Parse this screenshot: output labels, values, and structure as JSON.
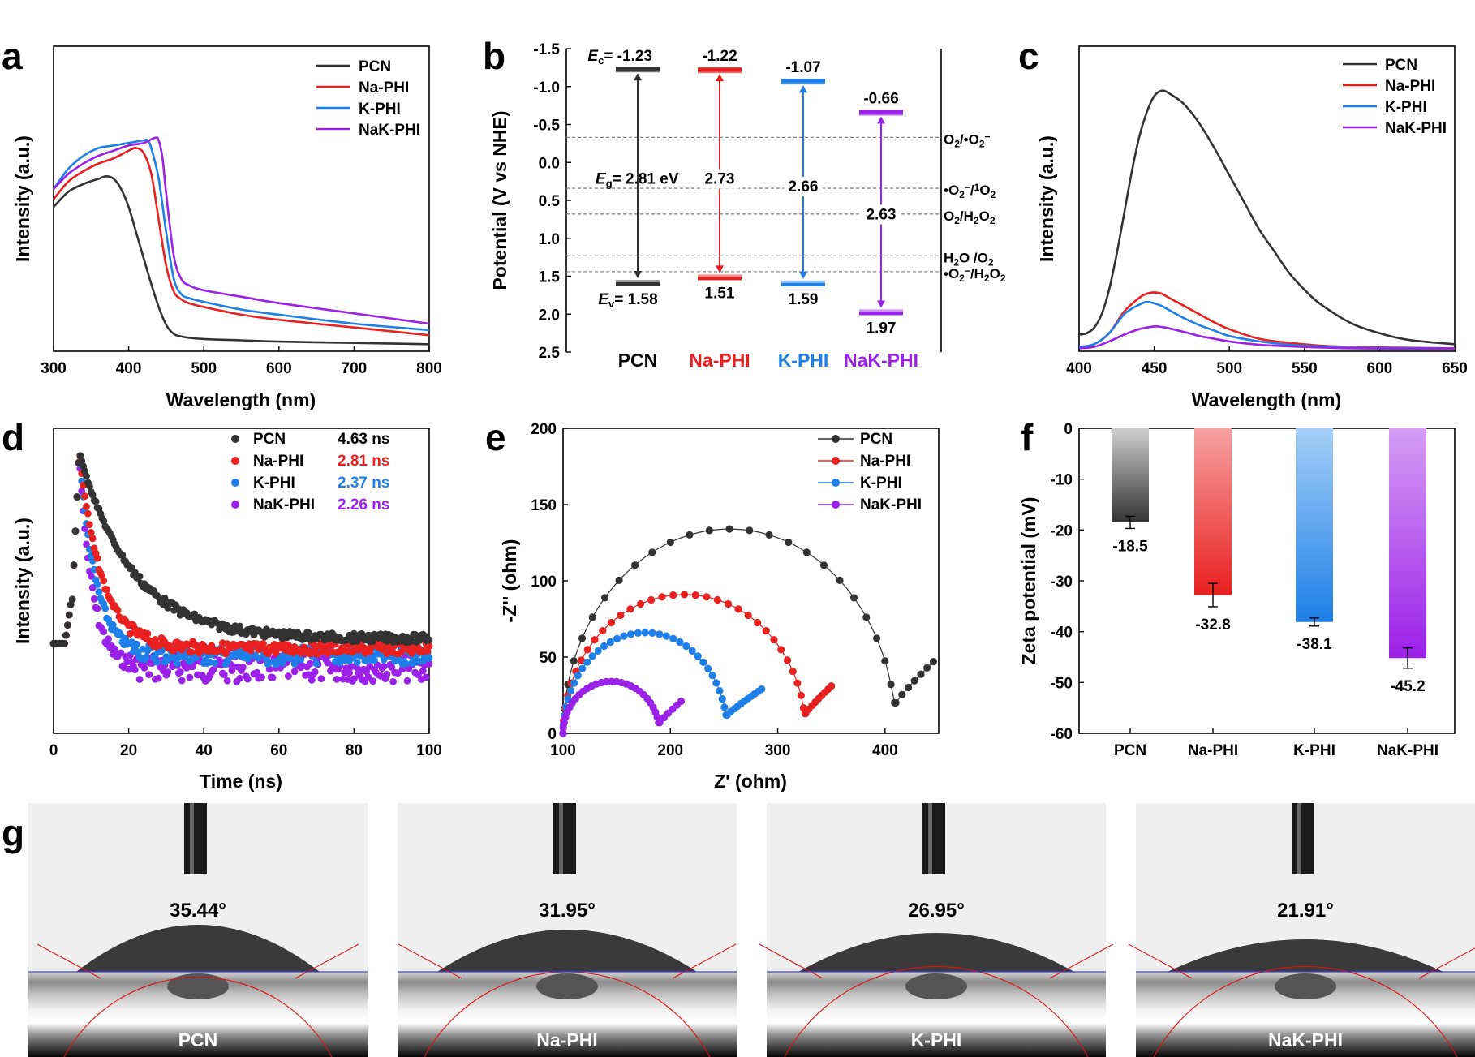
{
  "panel_labels": [
    "a",
    "b",
    "c",
    "d",
    "e",
    "f",
    "g"
  ],
  "colors": {
    "PCN": "#333333",
    "Na-PHI": "#e8201f",
    "K-PHI": "#1e7fe8",
    "NaK-PHI": "#9b20e8",
    "line": "#000000",
    "dashed": "#888888"
  },
  "chart_data": [
    {
      "panel": "a",
      "type": "line",
      "xlabel": "Wavelength (nm)",
      "ylabel": "Intensity (a.u.)",
      "xlim": [
        300,
        800
      ],
      "ylim": [
        0,
        1.0
      ],
      "xticks": [
        300,
        400,
        500,
        600,
        700,
        800
      ],
      "legend": "top-right",
      "series": [
        {
          "name": "PCN",
          "color": "#333333",
          "x": [
            300,
            320,
            340,
            360,
            370,
            380,
            390,
            400,
            410,
            420,
            430,
            440,
            450,
            460,
            470,
            480,
            500,
            550,
            600,
            700,
            800
          ],
          "y": [
            0.55,
            0.61,
            0.64,
            0.66,
            0.67,
            0.66,
            0.62,
            0.55,
            0.45,
            0.35,
            0.25,
            0.16,
            0.09,
            0.055,
            0.045,
            0.04,
            0.035,
            0.03,
            0.025,
            0.02,
            0.015
          ]
        },
        {
          "name": "Na-PHI",
          "color": "#e8201f",
          "x": [
            300,
            320,
            340,
            360,
            380,
            400,
            410,
            420,
            430,
            440,
            450,
            460,
            470,
            480,
            500,
            550,
            600,
            700,
            800
          ],
          "y": [
            0.58,
            0.65,
            0.69,
            0.72,
            0.74,
            0.77,
            0.78,
            0.76,
            0.68,
            0.5,
            0.32,
            0.22,
            0.19,
            0.175,
            0.16,
            0.13,
            0.11,
            0.08,
            0.05
          ]
        },
        {
          "name": "K-PHI",
          "color": "#1e7fe8",
          "x": [
            300,
            320,
            340,
            360,
            380,
            400,
            420,
            425,
            430,
            440,
            450,
            460,
            470,
            480,
            500,
            550,
            600,
            700,
            800
          ],
          "y": [
            0.62,
            0.7,
            0.75,
            0.78,
            0.79,
            0.8,
            0.81,
            0.81,
            0.78,
            0.66,
            0.45,
            0.27,
            0.21,
            0.195,
            0.18,
            0.15,
            0.13,
            0.095,
            0.07
          ]
        },
        {
          "name": "NaK-PHI",
          "color": "#9b20e8",
          "x": [
            300,
            320,
            340,
            360,
            380,
            400,
            420,
            435,
            440,
            445,
            450,
            460,
            470,
            480,
            500,
            550,
            600,
            700,
            800
          ],
          "y": [
            0.62,
            0.68,
            0.72,
            0.75,
            0.77,
            0.79,
            0.8,
            0.82,
            0.81,
            0.74,
            0.6,
            0.36,
            0.27,
            0.245,
            0.225,
            0.2,
            0.175,
            0.135,
            0.095
          ]
        }
      ]
    },
    {
      "panel": "b",
      "type": "band_diagram",
      "ylabel": "Potential (V vs NHE)",
      "ylim": [
        -1.5,
        2.5
      ],
      "yticks": [
        "-1.5",
        "-1.0",
        "-0.5",
        "0.0",
        "0.5",
        "1.0",
        "1.5",
        "2.0",
        "2.5"
      ],
      "samples": [
        {
          "name": "PCN",
          "color": "#333333",
          "ec": -1.23,
          "ev": 1.58,
          "ec_label": "-1.23",
          "ev_label": "1.58",
          "eg_label": "2.81 eV",
          "ec_prefix": "E",
          "ec_sub": "c",
          "ev_prefix": "E",
          "ev_sub": "v",
          "eg_prefix": "E",
          "eg_sub": "g",
          "eq": "= ",
          "label_color": "#000000"
        },
        {
          "name": "Na-PHI",
          "color": "#e8201f",
          "ec": -1.22,
          "ev": 1.51,
          "ec_label": "-1.22",
          "ev_label": "1.51",
          "eg_label": "2.73",
          "label_color": "#e8201f"
        },
        {
          "name": "K-PHI",
          "color": "#1e7fe8",
          "ec": -1.07,
          "ev": 1.59,
          "ec_label": "-1.07",
          "ev_label": "1.59",
          "eg_label": "2.66",
          "label_color": "#1e7fe8"
        },
        {
          "name": "NaK-PHI",
          "color": "#9b20e8",
          "ec": -0.66,
          "ev": 1.97,
          "ec_label": "-0.66",
          "ev_label": "1.97",
          "eg_label": "2.63",
          "label_color": "#9b20e8"
        }
      ],
      "redox": [
        {
          "v": -0.33,
          "label": "O2/•O2−"
        },
        {
          "v": 0.34,
          "label": "•O2−/1O2"
        },
        {
          "v": 0.68,
          "label": "O2/H2O2"
        },
        {
          "v": 1.23,
          "label": "H2O/O2"
        },
        {
          "v": 1.44,
          "label": "•O2−/H2O2"
        }
      ]
    },
    {
      "panel": "c",
      "type": "line",
      "xlabel": "Wavelength (nm)",
      "ylabel": "Intensity (a.u.)",
      "xlim": [
        400,
        650
      ],
      "ylim": [
        0,
        1.0
      ],
      "xticks": [
        400,
        450,
        500,
        550,
        600,
        650
      ],
      "legend": "top-right",
      "series": [
        {
          "name": "PCN",
          "color": "#333333",
          "x": [
            400,
            405,
            410,
            415,
            420,
            425,
            430,
            435,
            440,
            445,
            450,
            455,
            460,
            470,
            480,
            490,
            500,
            510,
            520,
            530,
            540,
            550,
            560,
            580,
            600,
            620,
            650
          ],
          "y": [
            0.055,
            0.06,
            0.08,
            0.13,
            0.22,
            0.35,
            0.5,
            0.65,
            0.78,
            0.87,
            0.93,
            0.95,
            0.94,
            0.9,
            0.83,
            0.74,
            0.64,
            0.54,
            0.44,
            0.36,
            0.28,
            0.22,
            0.17,
            0.1,
            0.06,
            0.035,
            0.02
          ]
        },
        {
          "name": "Na-PHI",
          "color": "#e8201f",
          "x": [
            400,
            410,
            420,
            430,
            440,
            445,
            450,
            455,
            460,
            470,
            480,
            490,
            500,
            520,
            540,
            560,
            580,
            600,
            650
          ],
          "y": [
            0.01,
            0.02,
            0.06,
            0.14,
            0.19,
            0.205,
            0.21,
            0.205,
            0.19,
            0.16,
            0.13,
            0.1,
            0.075,
            0.04,
            0.025,
            0.015,
            0.01,
            0.008,
            0.005
          ]
        },
        {
          "name": "K-PHI",
          "color": "#1e7fe8",
          "x": [
            400,
            410,
            420,
            430,
            440,
            445,
            450,
            455,
            460,
            470,
            480,
            490,
            500,
            520,
            540,
            560,
            580,
            600,
            650
          ],
          "y": [
            0.01,
            0.02,
            0.06,
            0.13,
            0.165,
            0.175,
            0.17,
            0.16,
            0.145,
            0.115,
            0.09,
            0.07,
            0.05,
            0.03,
            0.018,
            0.012,
            0.008,
            0.006,
            0.004
          ]
        },
        {
          "name": "NaK-PHI",
          "color": "#9b20e8",
          "x": [
            400,
            410,
            420,
            430,
            440,
            450,
            455,
            460,
            470,
            480,
            490,
            500,
            520,
            540,
            560,
            580,
            600,
            650
          ],
          "y": [
            0.005,
            0.01,
            0.03,
            0.055,
            0.075,
            0.085,
            0.083,
            0.078,
            0.065,
            0.05,
            0.04,
            0.03,
            0.018,
            0.012,
            0.008,
            0.005,
            0.004,
            0.003
          ]
        }
      ]
    },
    {
      "panel": "d",
      "type": "scatter",
      "xlabel": "Time (ns)",
      "ylabel": "Intensity (a.u.)",
      "xlim": [
        0,
        100
      ],
      "xticks": [
        0,
        20,
        40,
        60,
        80,
        100
      ],
      "legend": "top-right",
      "series": [
        {
          "name": "PCN",
          "color": "#333333",
          "lifetime": "4.63 ns",
          "tau": 14,
          "base": 0.24
        },
        {
          "name": "Na-PHI",
          "color": "#e8201f",
          "lifetime": "2.81 ns",
          "tau": 6,
          "base": 0.2
        },
        {
          "name": "K-PHI",
          "color": "#1e7fe8",
          "lifetime": "2.37 ns",
          "tau": 4.5,
          "base": 0.17
        },
        {
          "name": "NaK-PHI",
          "color": "#9b20e8",
          "lifetime": "2.26 ns",
          "tau": 3.5,
          "base": 0.12
        }
      ]
    },
    {
      "panel": "e",
      "type": "scatter",
      "xlabel": "Z' (ohm)",
      "ylabel": "-Z'' (ohm)",
      "xlim": [
        100,
        450
      ],
      "ylim": [
        0,
        200
      ],
      "xticks": [
        100,
        200,
        300,
        400
      ],
      "yticks": [
        0,
        50,
        100,
        150,
        200
      ],
      "legend": "top-right",
      "series": [
        {
          "name": "PCN",
          "color": "#333333",
          "r0": 100,
          "rct": 310,
          "peak": 134,
          "tail_end": [
            445,
            47
          ]
        },
        {
          "name": "Na-PHI",
          "color": "#e8201f",
          "r0": 100,
          "rct": 226,
          "peak": 91,
          "tail_end": [
            350,
            31
          ]
        },
        {
          "name": "K-PHI",
          "color": "#1e7fe8",
          "r0": 100,
          "rct": 153,
          "peak": 66,
          "tail_end": [
            285,
            29
          ]
        },
        {
          "name": "NaK-PHI",
          "color": "#9b20e8",
          "r0": 100,
          "rct": 90,
          "peak": 34,
          "tail_end": [
            210,
            21
          ]
        }
      ]
    },
    {
      "panel": "f",
      "type": "bar",
      "ylabel": "Zeta potential (mV)",
      "ylim": [
        -60,
        0
      ],
      "yticks": [
        0,
        -10,
        -20,
        -30,
        -40,
        -50,
        -60
      ],
      "categories": [
        "PCN",
        "Na-PHI",
        "K-PHI",
        "NaK-PHI"
      ],
      "values": [
        -18.5,
        -32.8,
        -38.1,
        -45.2
      ],
      "errors": [
        1.2,
        2.3,
        0.8,
        2.0
      ],
      "value_labels": [
        "-18.5",
        "-32.8",
        "-38.1",
        "-45.2"
      ]
    }
  ],
  "contact_angles": [
    {
      "sample": "PCN",
      "angle": "35.44°"
    },
    {
      "sample": "Na-PHI",
      "angle": "31.95°"
    },
    {
      "sample": "K-PHI",
      "angle": "26.95°"
    },
    {
      "sample": "NaK-PHI",
      "angle": "21.91°"
    }
  ]
}
